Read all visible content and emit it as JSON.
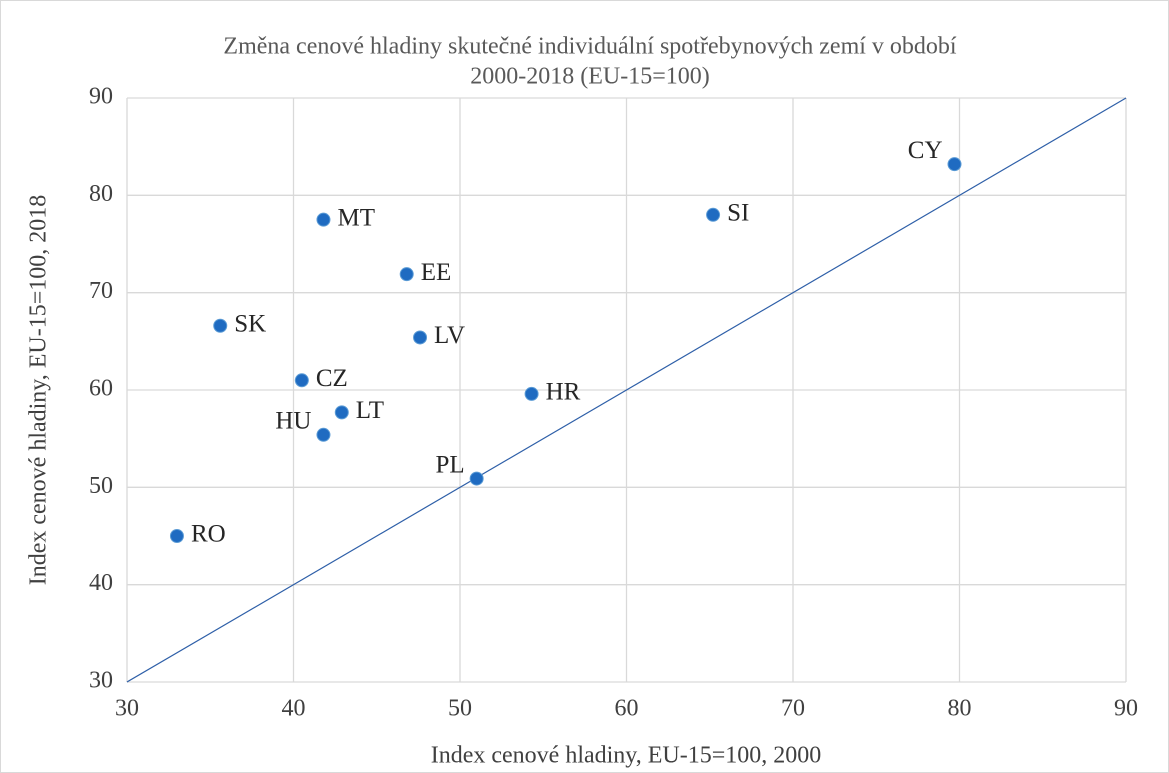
{
  "chart_data": {
    "type": "scatter",
    "title": [
      "Změna cenové hladiny skutečné individuální spotřebynových zemí v období",
      "2000-2018 (EU-15=100)"
    ],
    "x_label": "Index cenové hladiny, EU-15=100, 2000",
    "y_label": "Index cenové hladiny, EU-15=100, 2018",
    "labels": [
      "CY",
      "SI",
      "MT",
      "EE",
      "SK",
      "LV",
      "CZ",
      "LT",
      "HR",
      "HU",
      "PL",
      "RO"
    ],
    "x": [
      79.7,
      65.2,
      41.8,
      46.8,
      35.6,
      47.6,
      40.5,
      42.9,
      54.3,
      41.8,
      51.0,
      33.0
    ],
    "values": [
      83.2,
      78.0,
      77.5,
      71.9,
      66.6,
      65.4,
      61.0,
      57.7,
      59.6,
      55.4,
      50.9,
      45.0
    ],
    "color": "#1f6bc1",
    "diagonal_color": "#2e5fa8",
    "xlim": [
      30,
      90
    ],
    "xticks": [
      30,
      40,
      50,
      60,
      70,
      80,
      90
    ],
    "ylim": [
      30,
      90
    ],
    "yticks": [
      30,
      40,
      50,
      60,
      70,
      80,
      90
    ],
    "grid": true
  }
}
